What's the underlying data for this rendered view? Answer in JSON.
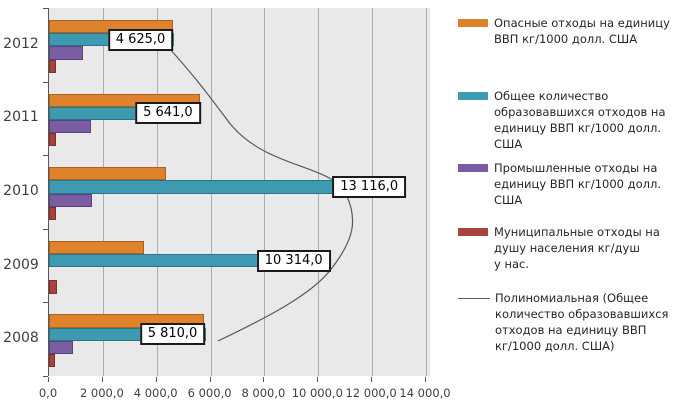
{
  "chart_data": {
    "type": "bar",
    "orientation": "horizontal-grouped",
    "title": "",
    "categories": [
      "2012",
      "2011",
      "2010",
      "2009",
      "2008"
    ],
    "series": [
      {
        "name": "Опасные отходы на единицу ВВП кг/1000 долл. США",
        "color": "#DF822C",
        "border": "#A9621F",
        "values": [
          4590,
          5610,
          4340,
          3540,
          5770
        ]
      },
      {
        "name": "Общее количество образовавшихся отходов на единицу ВВП  кг/1000 долл. США",
        "color": "#3D9AB1",
        "border": "#2E7486",
        "values": [
          4625,
          5641,
          13116,
          10314,
          5810
        ],
        "data_labels": [
          "4 625,0",
          "5 641,0",
          "13 116,0",
          "10 314,0",
          "5 810,0"
        ]
      },
      {
        "name": "Промышленные отходы на единицу ВВП  кг/1000 долл. США",
        "color": "#7A5DA3",
        "border": "#59447A",
        "values": [
          1250,
          1560,
          1600,
          0,
          890
        ]
      },
      {
        "name": "Муниципальные отходы на душу населения  кг/душ у нас.",
        "color": "#A8423C",
        "border": "#7C2F2B",
        "values": [
          260,
          260,
          240,
          300,
          220
        ]
      }
    ],
    "trendline": {
      "name": "Полиномиальная (Общее количество образовавшихся отходов на единицу ВВП кг/1000 долл. США)",
      "applies_to": "Общее количество образовавшихся отходов на единицу ВВП  кг/1000 долл. США",
      "color": "#595959"
    },
    "x_axis": {
      "min": 0,
      "max": 14000,
      "tick_step": 2000,
      "tick_labels": [
        "0,0",
        "2 000,0",
        "4 000,0",
        "6 000,0",
        "8 000,0",
        "10 000,0",
        "12 000,0",
        "14 000,0"
      ]
    },
    "grid": true,
    "legend_position": "right",
    "plot_background": "#E9E9E9",
    "gridline_color": "#ABABAB"
  },
  "legend": {
    "items": [
      {
        "swatch": "bar",
        "color": "#DF822C",
        "label": "Опасные отходы на единицу\nВВП кг/1000 долл. США"
      },
      {
        "swatch": "bar",
        "color": "#3D9AB1",
        "label": "Общее количество\nобразовавшихся отходов на\nединицу ВВП  кг/1000 долл.\nСША"
      },
      {
        "swatch": "bar",
        "color": "#7A5DA3",
        "label": "Промышленные отходы на\nединицу ВВП  кг/1000 долл.\nСША"
      },
      {
        "swatch": "bar",
        "color": "#A8423C",
        "label": "Муниципальные отходы на\nдушу населения  кг/душ\nу нас."
      },
      {
        "swatch": "line",
        "color": "#595959",
        "label": "Полиномиальная (Общее\nколичество образовавшихся\nотходов на единицу ВВП\nкг/1000 долл. США)"
      }
    ]
  }
}
